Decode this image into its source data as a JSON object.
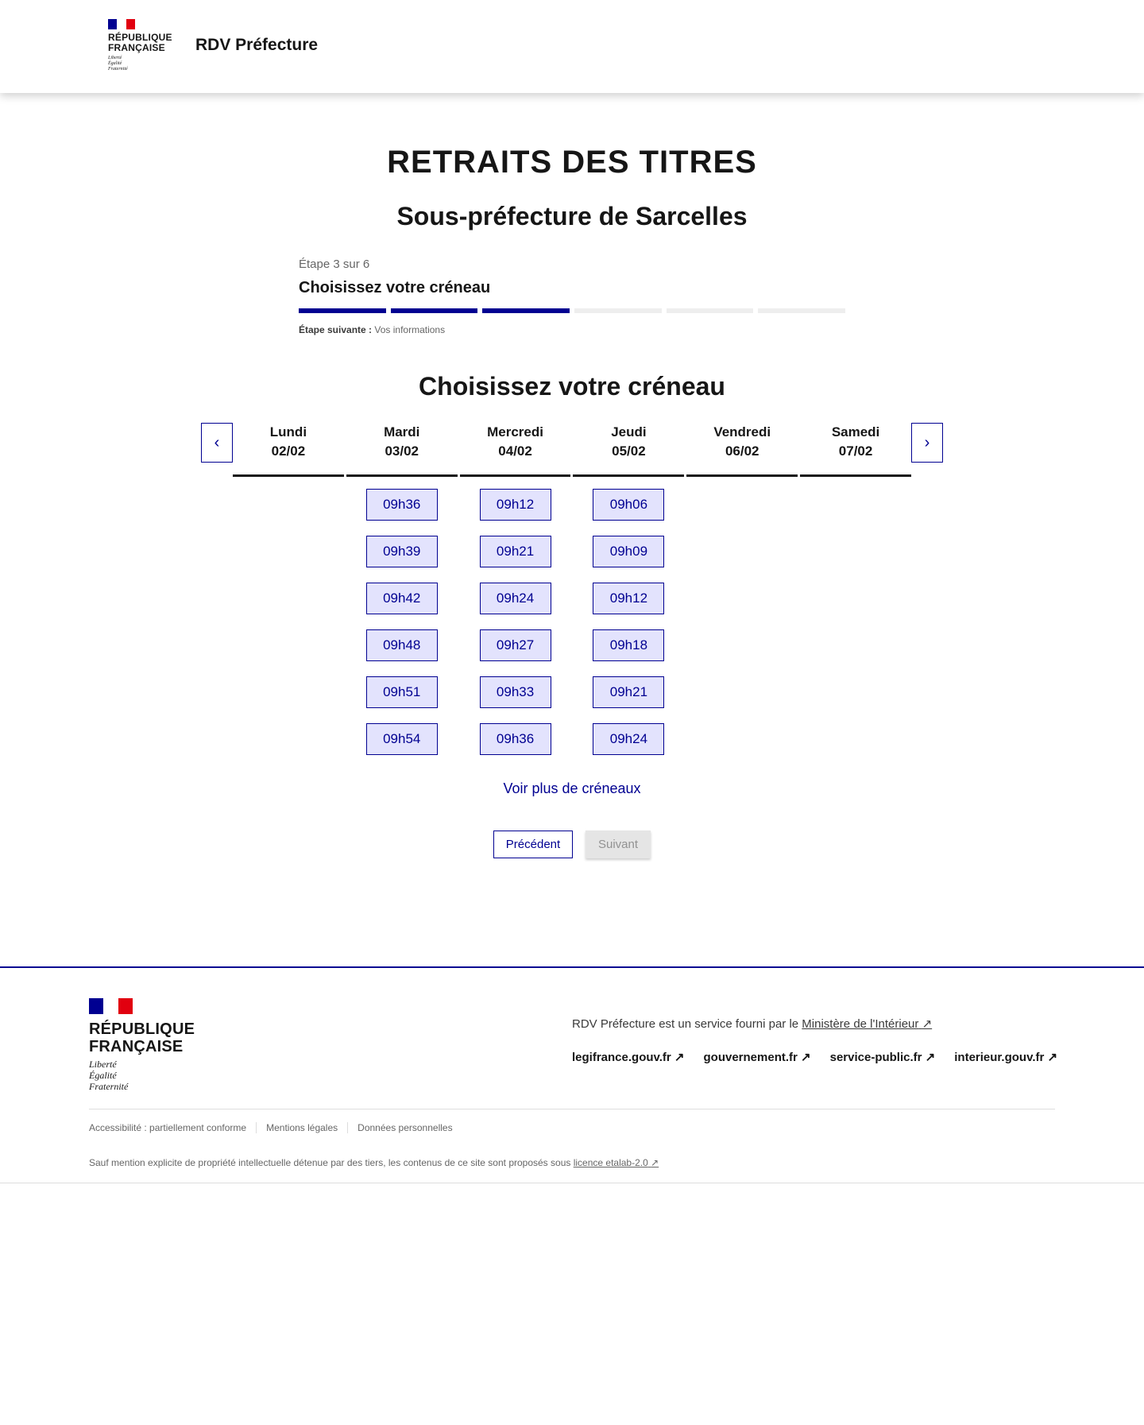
{
  "header": {
    "logo_line1": "RÉPUBLIQUE",
    "logo_line2": "FRANÇAISE",
    "motto": [
      "Liberté",
      "Égalité",
      "Fraternité"
    ],
    "site_title": "RDV Préfecture"
  },
  "page": {
    "title": "RETRAITS DES TITRES",
    "subtitle": "Sous-préfecture de Sarcelles"
  },
  "stepper": {
    "count": "Étape 3 sur 6",
    "title": "Choisissez votre créneau",
    "current": 3,
    "total": 6,
    "next_label": "Étape suivante :",
    "next_value": "Vos informations"
  },
  "slots": {
    "heading": "Choisissez votre créneau",
    "prev_icon": "chevron-left-icon",
    "next_icon": "chevron-right-icon",
    "days": [
      {
        "name": "Lundi",
        "date": "02/02",
        "times": []
      },
      {
        "name": "Mardi",
        "date": "03/02",
        "times": [
          "09h36",
          "09h39",
          "09h42",
          "09h48",
          "09h51",
          "09h54"
        ]
      },
      {
        "name": "Mercredi",
        "date": "04/02",
        "times": [
          "09h12",
          "09h21",
          "09h24",
          "09h27",
          "09h33",
          "09h36"
        ]
      },
      {
        "name": "Jeudi",
        "date": "05/02",
        "times": [
          "09h06",
          "09h09",
          "09h12",
          "09h18",
          "09h21",
          "09h24"
        ]
      },
      {
        "name": "Vendredi",
        "date": "06/02",
        "times": []
      },
      {
        "name": "Samedi",
        "date": "07/02",
        "times": []
      }
    ],
    "more": "Voir plus de créneaux"
  },
  "buttons": {
    "previous": "Précédent",
    "next": "Suivant"
  },
  "footer": {
    "logo_line1": "RÉPUBLIQUE",
    "logo_line2": "FRANÇAISE",
    "motto": [
      "Liberté",
      "Égalité",
      "Fraternité"
    ],
    "service_text": "RDV Préfecture est un service fourni par le ",
    "service_link": "Ministère de l'Intérieur",
    "links": [
      "legifrance.gouv.fr",
      "gouvernement.fr",
      "service-public.fr",
      "interieur.gouv.fr"
    ],
    "bottom_links": [
      "Accessibilité : partiellement conforme",
      "Mentions légales",
      "Données personnelles"
    ],
    "license_text": "Sauf mention explicite de propriété intellectuelle détenue par des tiers, les contenus de ce site sont proposés sous ",
    "license_link": "licence etalab-2.0"
  },
  "colors": {
    "primary": "#000091",
    "slot_bg": "#e3e3fd",
    "flag_red": "#e1000f"
  }
}
